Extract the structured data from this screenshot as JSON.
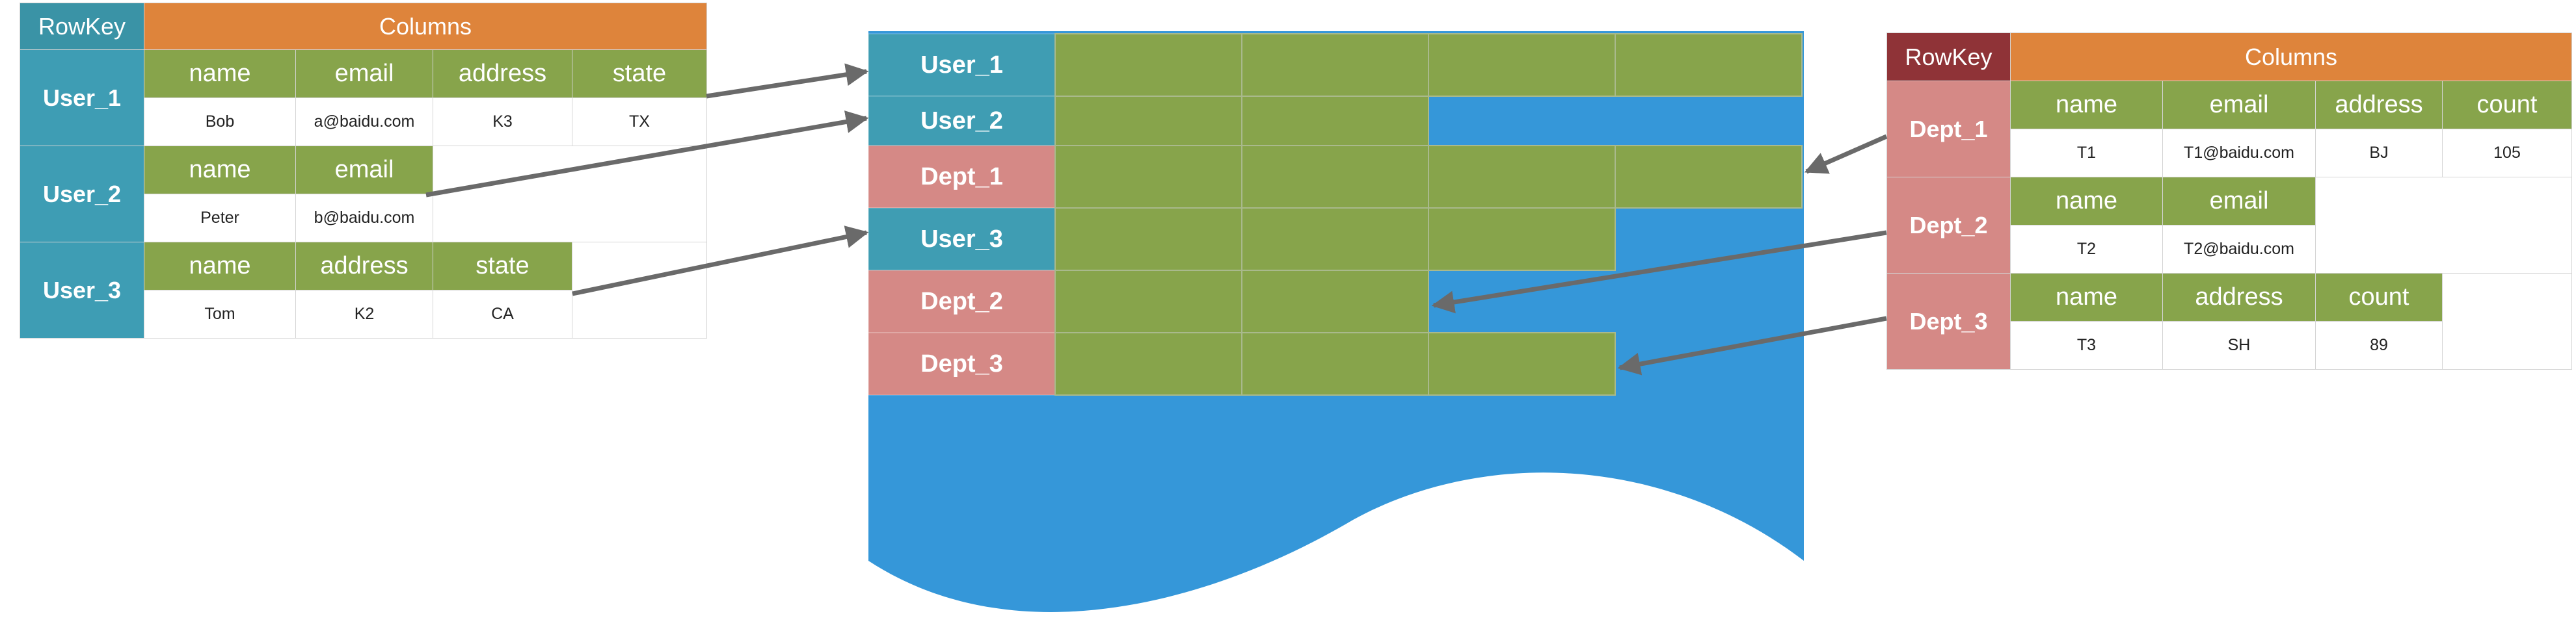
{
  "left_table": {
    "rowkey_header": "RowKey",
    "columns_header": "Columns",
    "rows": [
      {
        "key": "User_1",
        "fields": [
          "name",
          "email",
          "address",
          "state"
        ],
        "values": [
          "Bob",
          "a@baidu.com",
          "K3",
          "TX"
        ]
      },
      {
        "key": "User_2",
        "fields": [
          "name",
          "email"
        ],
        "values": [
          "Peter",
          "b@baidu.com"
        ]
      },
      {
        "key": "User_3",
        "fields": [
          "name",
          "address",
          "state"
        ],
        "values": [
          "Tom",
          "K2",
          "CA"
        ]
      }
    ]
  },
  "right_table": {
    "rowkey_header": "RowKey",
    "columns_header": "Columns",
    "rows": [
      {
        "key": "Dept_1",
        "fields": [
          "name",
          "email",
          "address",
          "count"
        ],
        "values": [
          "T1",
          "T1@baidu.com",
          "BJ",
          "105"
        ]
      },
      {
        "key": "Dept_2",
        "fields": [
          "name",
          "email"
        ],
        "values": [
          "T2",
          "T2@baidu.com"
        ]
      },
      {
        "key": "Dept_3",
        "fields": [
          "name",
          "address",
          "count"
        ],
        "values": [
          "T3",
          "SH",
          "89"
        ]
      }
    ]
  },
  "storage": {
    "rows": [
      {
        "key": "User_1",
        "kind": "user",
        "cells": 4
      },
      {
        "key": "User_2",
        "kind": "user",
        "cells": 2
      },
      {
        "key": "Dept_1",
        "kind": "dept",
        "cells": 4
      },
      {
        "key": "User_3",
        "kind": "user",
        "cells": 3
      },
      {
        "key": "Dept_2",
        "kind": "dept",
        "cells": 2
      },
      {
        "key": "Dept_3",
        "kind": "dept",
        "cells": 3
      }
    ]
  },
  "colors": {
    "background_blue": "#3597d9",
    "user_row": "#3f9db3",
    "dept_row": "#d58986",
    "cell_green": "#87a44b",
    "columns_orange": "#de843b",
    "arrow_gray": "#6a6a6a"
  }
}
